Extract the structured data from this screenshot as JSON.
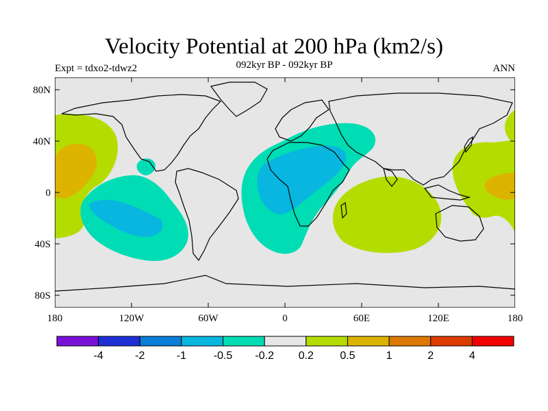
{
  "title": "Velocity Potential at 200 hPa (km2/s)",
  "left_label": "Expt = tdxo2-tdwz2",
  "center_label": "092kyr BP - 092kyr BP",
  "right_label": "ANN",
  "axes": {
    "lat_ticks": [
      "80N",
      "40N",
      "0",
      "40S",
      "80S"
    ],
    "lon_ticks": [
      "180",
      "120W",
      "60W",
      "0",
      "60E",
      "120E",
      "180"
    ]
  },
  "colors": {
    "background_field": "#e6e6e6",
    "coastline": "#000000"
  },
  "colorbar": {
    "colors": [
      "#7a10d8",
      "#1e2fd6",
      "#0a7dd6",
      "#08b6e0",
      "#00dcb4",
      "#e6e6e6",
      "#b4dc00",
      "#dcb400",
      "#dc7800",
      "#dc3c00",
      "#f00000"
    ],
    "labels": [
      "-4",
      "-2",
      "-1",
      "-0.5",
      "-0.2",
      "0.2",
      "0.5",
      "1",
      "2",
      "4"
    ]
  }
}
